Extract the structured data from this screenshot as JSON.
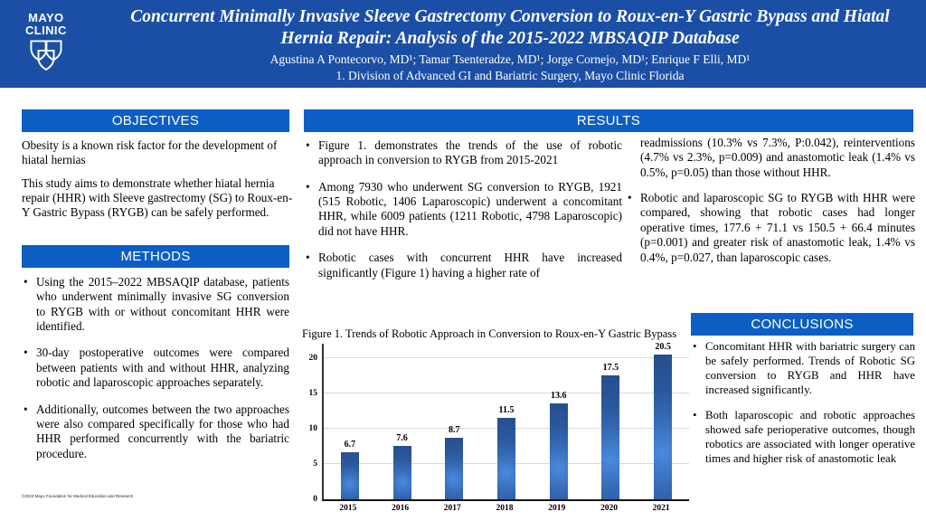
{
  "header": {
    "logo_line1": "MAYO",
    "logo_line2": "CLINIC",
    "title": "Concurrent Minimally Invasive Sleeve Gastrectomy Conversion to Roux-en-Y Gastric Bypass and Hiatal Hernia Repair: Analysis of the 2015-2022 MBSAQIP Database",
    "authors": "Agustina A Pontecorvo, MD¹; Tamar Tsenteradze, MD¹; Jorge Cornejo, MD¹; Enrique F Elli, MD¹",
    "affiliation": "1. Division of Advanced GI and Bariatric Surgery, Mayo Clinic Florida"
  },
  "objectives": {
    "title": "OBJECTIVES",
    "paragraphs": [
      "Obesity is a known risk factor for the development of hiatal hernias",
      "This study aims to demonstrate whether hiatal hernia repair (HHR) with Sleeve gastrectomy (SG) to Roux-en-Y Gastric Bypass (RYGB) can be safely performed."
    ]
  },
  "methods": {
    "title": "METHODS",
    "bullets": [
      "Using the 2015–2022 MBSAQIP database, patients who underwent minimally invasive SG conversion to RYGB with or without concomitant HHR were identified.",
      "30-day postoperative outcomes were compared between patients with and without HHR, analyzing robotic and laparoscopic approaches separately.",
      "Additionally, outcomes between the two approaches were also compared specifically for those who had HHR performed concurrently with the bariatric procedure."
    ]
  },
  "results": {
    "title": "RESULTS",
    "col1_bullets": [
      "Figure 1. demonstrates the trends of the use of robotic approach in conversion to RYGB from 2015-2021",
      "Among 7930 who underwent SG conversion to RYGB, 1921 (515 Robotic, 1406 Laparoscopic) underwent a concomitant HHR, while 6009 patients (1211 Robotic, 4798 Laparoscopic) did not have HHR.",
      "Robotic cases with concurrent HHR have increased significantly (Figure 1) having a higher rate of"
    ],
    "col2_continuation": "readmissions (10.3% vs 7.3%, P:0.042), reinterventions (4.7% vs 2.3%, p=0.009) and anastomotic leak (1.4% vs 0.5%, p=0.05) than those without HHR.",
    "col2_bullets": [
      "Robotic and laparoscopic SG to RYGB with HHR were compared, showing that robotic cases had longer operative times, 177.6 + 71.1 vs 150.5 + 66.4 minutes (p=0.001) and greater risk of anastomotic leak, 1.4% vs 0.4%, p=0.027, than laparoscopic cases."
    ]
  },
  "conclusions": {
    "title": "CONCLUSIONS",
    "bullets": [
      "Concomitant HHR with bariatric surgery can be safely performed. Trends of Robotic SG conversion to RYGB and HHR have increased significantly.",
      "Both laparoscopic and robotic approaches showed safe perioperative outcomes, though robotics are associated with longer operative times and higher risk of anastomotic leak"
    ]
  },
  "figure": {
    "caption": "Figure 1. Trends of Robotic Approach in Conversion to Roux-en-Y Gastric Bypass"
  },
  "chart_data": {
    "type": "bar",
    "categories": [
      "2015",
      "2016",
      "2017",
      "2018",
      "2019",
      "2020",
      "2021"
    ],
    "values": [
      6.7,
      7.6,
      8.7,
      11.5,
      13.6,
      17.5,
      20.5
    ],
    "title": "Figure 1. Trends of Robotic Approach in Conversion to Roux-en-Y Gastric Bypass",
    "xlabel": "",
    "ylabel": "",
    "ylim": [
      0,
      22
    ],
    "yticks": [
      0,
      5,
      10,
      15,
      20
    ],
    "grid": true,
    "legend": false,
    "bar_color": "#2d5fa6",
    "bar_highlight": "#4a8ade"
  },
  "footer": {
    "copyright": "©2023 Mayo Foundation for Medical Education and Research"
  },
  "colors": {
    "header_bg": "#1b4fa5",
    "section_bar_bg": "#0d5ec3"
  }
}
